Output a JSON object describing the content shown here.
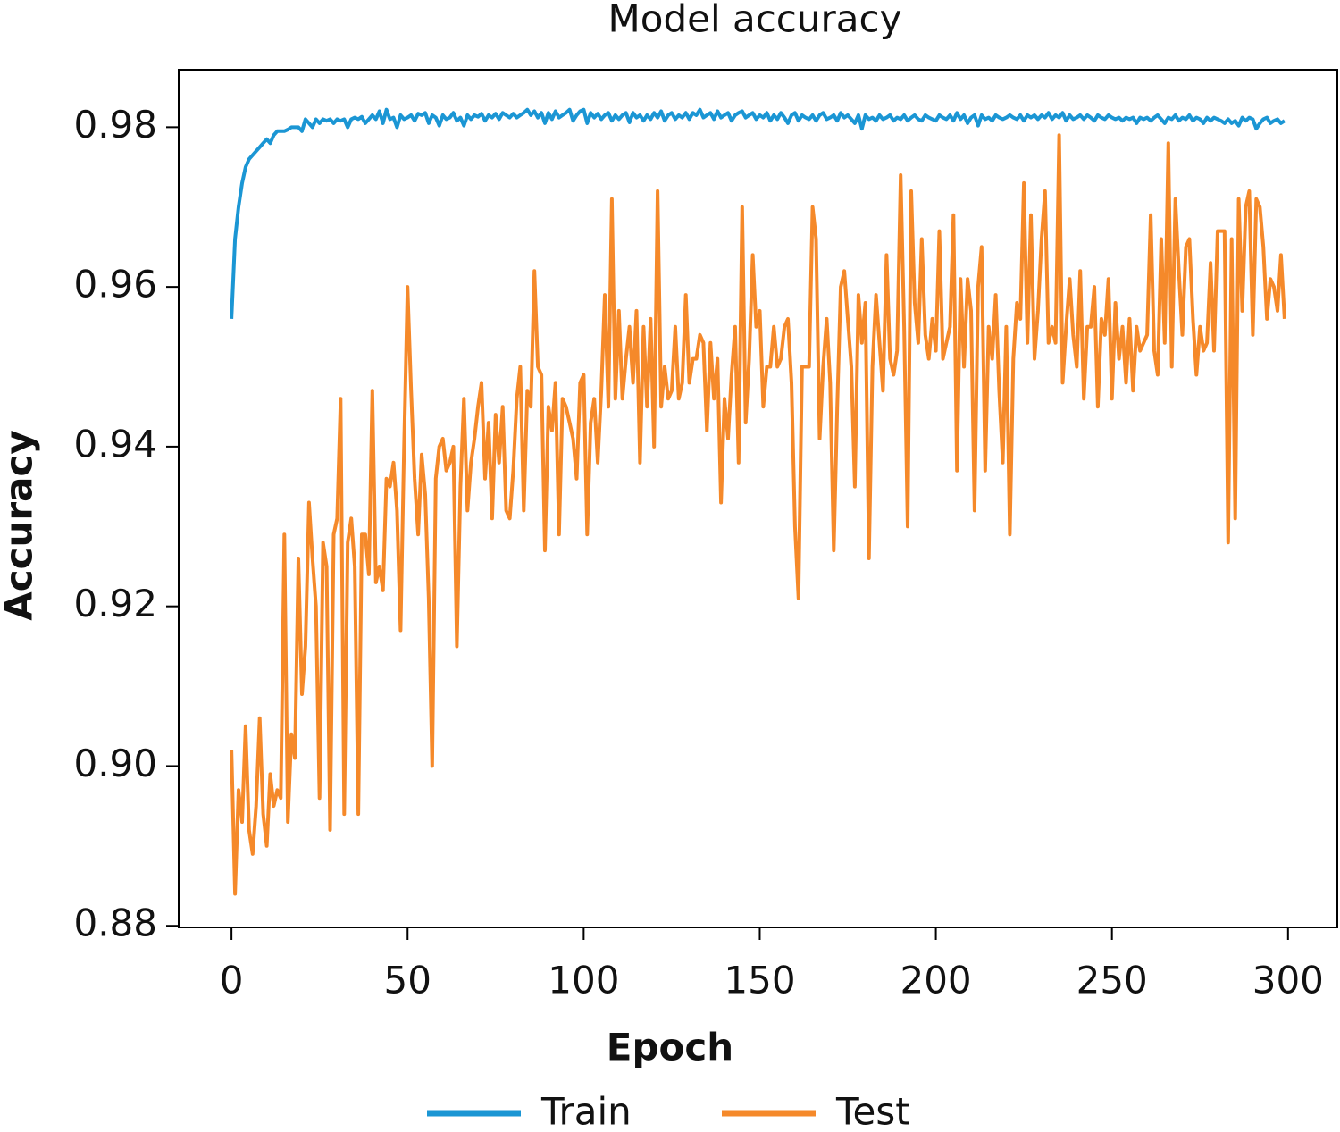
{
  "chart_data": {
    "type": "line",
    "title": "Model accuracy",
    "xlabel": "Epoch",
    "ylabel": "Accuracy",
    "xlim": [
      -15,
      314
    ],
    "ylim": [
      0.8798,
      0.9872
    ],
    "xticks": [
      0,
      50,
      100,
      150,
      200,
      250,
      300
    ],
    "yticks": [
      {
        "value": 0.88,
        "label": "0.88"
      },
      {
        "value": 0.9,
        "label": "0.90"
      },
      {
        "value": 0.92,
        "label": "0.92"
      },
      {
        "value": 0.94,
        "label": "0.94"
      },
      {
        "value": 0.96,
        "label": "0.96"
      },
      {
        "value": 0.98,
        "label": "0.98"
      }
    ],
    "legend": "lower center",
    "x": [
      0,
      1,
      2,
      3,
      4,
      5,
      6,
      7,
      8,
      9,
      10,
      11,
      12,
      13,
      14,
      15,
      16,
      17,
      18,
      19,
      20,
      21,
      22,
      23,
      24,
      25,
      26,
      27,
      28,
      29,
      30,
      31,
      32,
      33,
      34,
      35,
      36,
      37,
      38,
      39,
      40,
      41,
      42,
      43,
      44,
      45,
      46,
      47,
      48,
      49,
      50,
      51,
      52,
      53,
      54,
      55,
      56,
      57,
      58,
      59,
      60,
      61,
      62,
      63,
      64,
      65,
      66,
      67,
      68,
      69,
      70,
      71,
      72,
      73,
      74,
      75,
      76,
      77,
      78,
      79,
      80,
      81,
      82,
      83,
      84,
      85,
      86,
      87,
      88,
      89,
      90,
      91,
      92,
      93,
      94,
      95,
      96,
      97,
      98,
      99,
      100,
      101,
      102,
      103,
      104,
      105,
      106,
      107,
      108,
      109,
      110,
      111,
      112,
      113,
      114,
      115,
      116,
      117,
      118,
      119,
      120,
      121,
      122,
      123,
      124,
      125,
      126,
      127,
      128,
      129,
      130,
      131,
      132,
      133,
      134,
      135,
      136,
      137,
      138,
      139,
      140,
      141,
      142,
      143,
      144,
      145,
      146,
      147,
      148,
      149,
      150,
      151,
      152,
      153,
      154,
      155,
      156,
      157,
      158,
      159,
      160,
      161,
      162,
      163,
      164,
      165,
      166,
      167,
      168,
      169,
      170,
      171,
      172,
      173,
      174,
      175,
      176,
      177,
      178,
      179,
      180,
      181,
      182,
      183,
      184,
      185,
      186,
      187,
      188,
      189,
      190,
      191,
      192,
      193,
      194,
      195,
      196,
      197,
      198,
      199,
      200,
      201,
      202,
      203,
      204,
      205,
      206,
      207,
      208,
      209,
      210,
      211,
      212,
      213,
      214,
      215,
      216,
      217,
      218,
      219,
      220,
      221,
      222,
      223,
      224,
      225,
      226,
      227,
      228,
      229,
      230,
      231,
      232,
      233,
      234,
      235,
      236,
      237,
      238,
      239,
      240,
      241,
      242,
      243,
      244,
      245,
      246,
      247,
      248,
      249,
      250,
      251,
      252,
      253,
      254,
      255,
      256,
      257,
      258,
      259,
      260,
      261,
      262,
      263,
      264,
      265,
      266,
      267,
      268,
      269,
      270,
      271,
      272,
      273,
      274,
      275,
      276,
      277,
      278,
      279,
      280,
      281,
      282,
      283,
      284,
      285,
      286,
      287,
      288,
      289,
      290,
      291,
      292,
      293,
      294,
      295,
      296,
      297,
      298,
      299
    ],
    "series": [
      {
        "name": "Train",
        "color": "#1b96d4",
        "values": [
          0.956,
          0.966,
          0.97,
          0.973,
          0.975,
          0.976,
          0.9765,
          0.977,
          0.9775,
          0.978,
          0.9785,
          0.978,
          0.979,
          0.9795,
          0.9795,
          0.9795,
          0.9797,
          0.98,
          0.98,
          0.98,
          0.9795,
          0.981,
          0.9805,
          0.98,
          0.981,
          0.9805,
          0.981,
          0.9808,
          0.981,
          0.9805,
          0.981,
          0.9808,
          0.981,
          0.98,
          0.981,
          0.9812,
          0.981,
          0.9813,
          0.9805,
          0.981,
          0.9815,
          0.981,
          0.982,
          0.9805,
          0.9822,
          0.981,
          0.9812,
          0.98,
          0.9815,
          0.981,
          0.9812,
          0.9815,
          0.9808,
          0.9817,
          0.9815,
          0.9818,
          0.9805,
          0.9815,
          0.9812,
          0.9802,
          0.9815,
          0.981,
          0.9812,
          0.9818,
          0.9808,
          0.9812,
          0.9802,
          0.9815,
          0.981,
          0.9815,
          0.9813,
          0.9817,
          0.9808,
          0.9815,
          0.9812,
          0.9817,
          0.981,
          0.9818,
          0.9815,
          0.9812,
          0.9817,
          0.9812,
          0.9815,
          0.9818,
          0.9822,
          0.9815,
          0.982,
          0.9812,
          0.9818,
          0.9805,
          0.9818,
          0.981,
          0.982,
          0.9812,
          0.9815,
          0.9818,
          0.9822,
          0.9808,
          0.9815,
          0.982,
          0.9822,
          0.9805,
          0.9818,
          0.9812,
          0.9817,
          0.981,
          0.9815,
          0.9818,
          0.9808,
          0.9815,
          0.981,
          0.9815,
          0.9818,
          0.9806,
          0.9818,
          0.9812,
          0.9815,
          0.9808,
          0.9815,
          0.981,
          0.9818,
          0.9812,
          0.982,
          0.9808,
          0.9815,
          0.9818,
          0.981,
          0.9815,
          0.9812,
          0.9818,
          0.981,
          0.9818,
          0.9815,
          0.9822,
          0.9812,
          0.9815,
          0.9818,
          0.981,
          0.982,
          0.9812,
          0.9815,
          0.9818,
          0.9808,
          0.9815,
          0.9818,
          0.982,
          0.9812,
          0.9815,
          0.9818,
          0.981,
          0.9815,
          0.9812,
          0.9818,
          0.9808,
          0.9815,
          0.981,
          0.9818,
          0.9812,
          0.9805,
          0.9815,
          0.9818,
          0.9808,
          0.9815,
          0.9812,
          0.981,
          0.9815,
          0.9808,
          0.9815,
          0.9818,
          0.981,
          0.9812,
          0.9815,
          0.9808,
          0.9818,
          0.9812,
          0.9815,
          0.981,
          0.9805,
          0.9815,
          0.9798,
          0.9815,
          0.981,
          0.9812,
          0.9808,
          0.9815,
          0.981,
          0.9812,
          0.9815,
          0.9808,
          0.9812,
          0.981,
          0.9815,
          0.9808,
          0.9812,
          0.9815,
          0.981,
          0.9808,
          0.9815,
          0.9812,
          0.981,
          0.9808,
          0.9815,
          0.9812,
          0.981,
          0.9815,
          0.9808,
          0.9818,
          0.981,
          0.9815,
          0.9805,
          0.9812,
          0.9815,
          0.9802,
          0.9815,
          0.981,
          0.9812,
          0.9808,
          0.9815,
          0.9812,
          0.981,
          0.9812,
          0.9815,
          0.9812,
          0.981,
          0.9815,
          0.9808,
          0.9815,
          0.9812,
          0.9815,
          0.981,
          0.9815,
          0.9812,
          0.9818,
          0.981,
          0.9815,
          0.9812,
          0.9818,
          0.9808,
          0.9815,
          0.981,
          0.9812,
          0.9815,
          0.981,
          0.9815,
          0.9812,
          0.9808,
          0.9815,
          0.9812,
          0.981,
          0.9815,
          0.9812,
          0.981,
          0.9812,
          0.9808,
          0.9812,
          0.981,
          0.9812,
          0.9805,
          0.9812,
          0.981,
          0.9812,
          0.9808,
          0.9812,
          0.9815,
          0.981,
          0.9805,
          0.9812,
          0.981,
          0.9815,
          0.9808,
          0.9812,
          0.981,
          0.9815,
          0.9808,
          0.9812,
          0.981,
          0.9805,
          0.9812,
          0.9808,
          0.9812,
          0.981,
          0.9808,
          0.9805,
          0.981,
          0.9805,
          0.9808,
          0.9802,
          0.9812,
          0.9808,
          0.9812,
          0.981,
          0.9798,
          0.9805,
          0.981,
          0.9812,
          0.9805,
          0.9808,
          0.981,
          0.9805,
          0.9808
        ]
      },
      {
        "name": "Test",
        "color": "#f5892a",
        "values": [
          0.902,
          0.884,
          0.897,
          0.893,
          0.905,
          0.892,
          0.889,
          0.895,
          0.906,
          0.894,
          0.89,
          0.899,
          0.895,
          0.897,
          0.896,
          0.929,
          0.893,
          0.904,
          0.901,
          0.926,
          0.909,
          0.915,
          0.933,
          0.926,
          0.92,
          0.896,
          0.928,
          0.925,
          0.892,
          0.929,
          0.931,
          0.946,
          0.894,
          0.928,
          0.931,
          0.925,
          0.894,
          0.929,
          0.929,
          0.924,
          0.947,
          0.923,
          0.925,
          0.922,
          0.936,
          0.935,
          0.938,
          0.932,
          0.917,
          0.94,
          0.96,
          0.947,
          0.936,
          0.929,
          0.939,
          0.934,
          0.921,
          0.9,
          0.936,
          0.94,
          0.941,
          0.937,
          0.938,
          0.94,
          0.915,
          0.935,
          0.946,
          0.932,
          0.938,
          0.941,
          0.945,
          0.948,
          0.936,
          0.943,
          0.931,
          0.944,
          0.938,
          0.945,
          0.932,
          0.931,
          0.937,
          0.946,
          0.95,
          0.932,
          0.947,
          0.945,
          0.962,
          0.95,
          0.949,
          0.927,
          0.945,
          0.942,
          0.948,
          0.929,
          0.946,
          0.945,
          0.943,
          0.941,
          0.936,
          0.948,
          0.949,
          0.929,
          0.943,
          0.946,
          0.938,
          0.947,
          0.959,
          0.945,
          0.971,
          0.946,
          0.957,
          0.946,
          0.951,
          0.955,
          0.948,
          0.957,
          0.938,
          0.955,
          0.945,
          0.956,
          0.94,
          0.972,
          0.945,
          0.95,
          0.946,
          0.947,
          0.955,
          0.946,
          0.948,
          0.959,
          0.948,
          0.951,
          0.951,
          0.954,
          0.953,
          0.942,
          0.953,
          0.946,
          0.951,
          0.933,
          0.946,
          0.941,
          0.949,
          0.955,
          0.938,
          0.97,
          0.943,
          0.951,
          0.964,
          0.955,
          0.957,
          0.945,
          0.95,
          0.95,
          0.955,
          0.95,
          0.951,
          0.955,
          0.956,
          0.948,
          0.93,
          0.921,
          0.95,
          0.95,
          0.95,
          0.97,
          0.966,
          0.941,
          0.95,
          0.956,
          0.948,
          0.927,
          0.945,
          0.96,
          0.962,
          0.956,
          0.95,
          0.935,
          0.959,
          0.953,
          0.958,
          0.926,
          0.95,
          0.959,
          0.953,
          0.947,
          0.964,
          0.951,
          0.949,
          0.952,
          0.974,
          0.955,
          0.93,
          0.972,
          0.958,
          0.953,
          0.966,
          0.954,
          0.951,
          0.956,
          0.952,
          0.967,
          0.951,
          0.953,
          0.955,
          0.969,
          0.937,
          0.961,
          0.95,
          0.961,
          0.957,
          0.932,
          0.96,
          0.965,
          0.937,
          0.955,
          0.951,
          0.959,
          0.947,
          0.938,
          0.955,
          0.929,
          0.951,
          0.958,
          0.956,
          0.973,
          0.953,
          0.969,
          0.951,
          0.957,
          0.966,
          0.972,
          0.953,
          0.955,
          0.953,
          0.979,
          0.948,
          0.955,
          0.961,
          0.954,
          0.95,
          0.962,
          0.946,
          0.955,
          0.955,
          0.96,
          0.945,
          0.956,
          0.954,
          0.961,
          0.946,
          0.958,
          0.951,
          0.955,
          0.948,
          0.956,
          0.947,
          0.955,
          0.952,
          0.953,
          0.954,
          0.969,
          0.952,
          0.949,
          0.966,
          0.953,
          0.978,
          0.95,
          0.971,
          0.962,
          0.954,
          0.965,
          0.966,
          0.956,
          0.949,
          0.955,
          0.952,
          0.953,
          0.963,
          0.952,
          0.967,
          0.967,
          0.967,
          0.928,
          0.966,
          0.931,
          0.971,
          0.957,
          0.97,
          0.972,
          0.954,
          0.971,
          0.97,
          0.965,
          0.956,
          0.961,
          0.96,
          0.957,
          0.964,
          0.956
        ]
      }
    ]
  }
}
